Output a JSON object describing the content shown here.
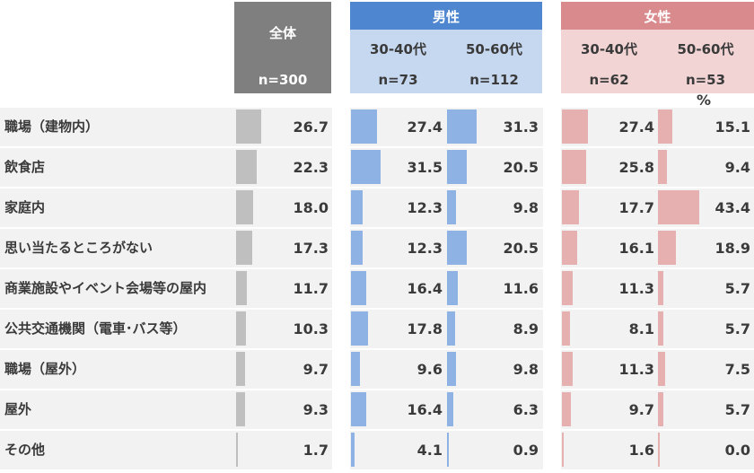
{
  "header": {
    "total": {
      "label": "全体",
      "n": "n=300"
    },
    "male": {
      "label": "男性",
      "groups": [
        {
          "age": "30-40代",
          "n": "n=73"
        },
        {
          "age": "50-60代",
          "n": "n=112"
        }
      ]
    },
    "female": {
      "label": "女性",
      "groups": [
        {
          "age": "30-40代",
          "n": "n=62"
        },
        {
          "age": "50-60代",
          "n": "n=53"
        }
      ]
    },
    "unit": "%"
  },
  "colors": {
    "total_header": "#7f7f7f",
    "male_header": "#4f86d0",
    "male_sub": "#c6d8f0",
    "female_header": "#d98a8c",
    "female_sub": "#f2d4d5",
    "total_bar": "#bfbfbf",
    "male_bar": "#8db2e3",
    "female_bar": "#e6b0b1"
  },
  "chart_data": {
    "type": "bar",
    "categories": [
      "職場（建物内）",
      "飲食店",
      "家庭内",
      "思い当たるところがない",
      "商業施設やイベント会場等の屋内",
      "公共交通機関（電車･バス等）",
      "職場（屋外）",
      "屋外",
      "その他"
    ],
    "series": [
      {
        "name": "全体",
        "values": [
          26.7,
          22.3,
          18.0,
          17.3,
          11.7,
          10.3,
          9.7,
          9.3,
          1.7
        ]
      },
      {
        "name": "男性 30-40代",
        "values": [
          27.4,
          31.5,
          12.3,
          12.3,
          16.4,
          17.8,
          9.6,
          16.4,
          4.1
        ]
      },
      {
        "name": "男性 50-60代",
        "values": [
          31.3,
          20.5,
          9.8,
          20.5,
          11.6,
          8.9,
          9.8,
          6.3,
          0.9
        ]
      },
      {
        "name": "女性 30-40代",
        "values": [
          27.4,
          25.8,
          17.7,
          16.1,
          11.3,
          8.1,
          11.3,
          9.7,
          1.6
        ]
      },
      {
        "name": "女性 50-60代",
        "values": [
          15.1,
          9.4,
          43.4,
          18.9,
          5.7,
          5.7,
          7.5,
          5.7,
          0.0
        ]
      }
    ],
    "display_values": [
      [
        "26.7",
        "22.3",
        "18.0",
        "17.3",
        "11.7",
        "10.3",
        "9.7",
        "9.3",
        "1.7"
      ],
      [
        "27.4",
        "31.5",
        "12.3",
        "12.3",
        "16.4",
        "17.8",
        "9.6",
        "16.4",
        "4.1"
      ],
      [
        "31.3",
        "20.5",
        "9.8",
        "20.5",
        "11.6",
        "8.9",
        "9.8",
        "6.3",
        "0.9"
      ],
      [
        "27.4",
        "25.8",
        "17.7",
        "16.1",
        "11.3",
        "8.1",
        "11.3",
        "9.7",
        "1.6"
      ],
      [
        "15.1",
        "9.4",
        "43.4",
        "18.9",
        "5.7",
        "5.7",
        "7.5",
        "5.7",
        "0.0"
      ]
    ],
    "orientation": "horizontal",
    "grid": false
  }
}
